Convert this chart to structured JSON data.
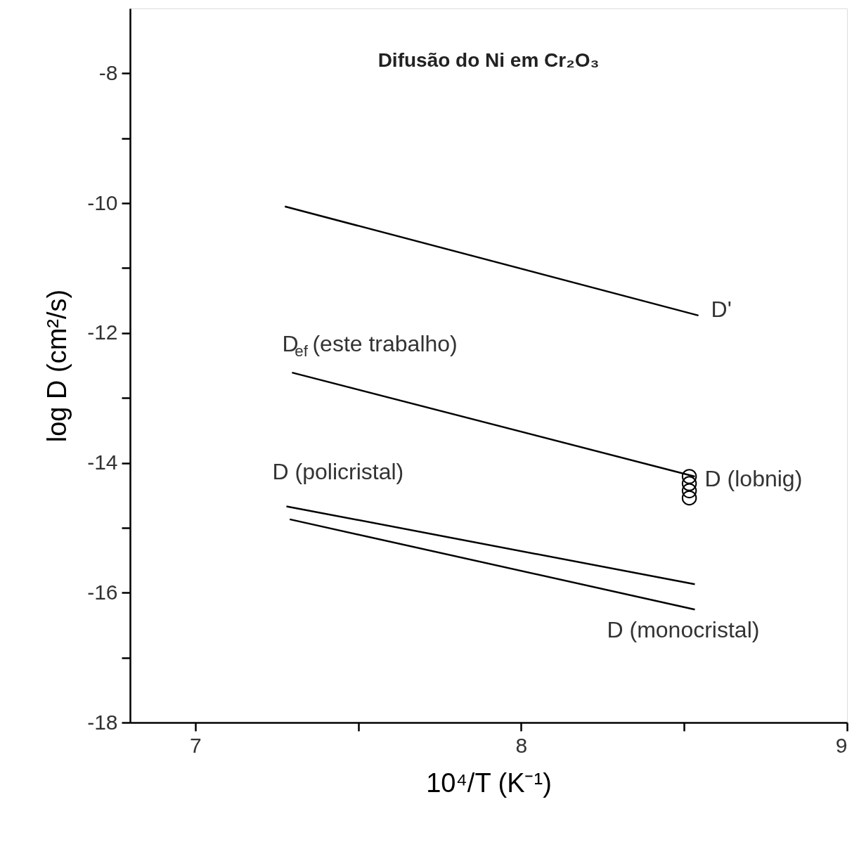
{
  "chart_data": {
    "type": "line",
    "title": "Difusão do Ni em Cr₂O₃",
    "xlabel": "10⁴/T (K⁻¹)",
    "ylabel": "log D (cm²/s)",
    "xlim": [
      6.8,
      9
    ],
    "ylim": [
      -18,
      -7
    ],
    "xticks": [
      7,
      {
        "value": 7.5,
        "label": null
      },
      8,
      {
        "value": 8.5,
        "label": null
      },
      9
    ],
    "yticks": [
      -8,
      {
        "value": -9,
        "label": null
      },
      -10,
      {
        "value": -11,
        "label": null
      },
      -12,
      {
        "value": -13,
        "label": null
      },
      -14,
      {
        "value": -15,
        "label": null
      },
      -16,
      {
        "value": -17,
        "label": null
      },
      -18
    ],
    "grid": false,
    "series": [
      {
        "name": "D'",
        "color": "#000000",
        "x": [
          7.275,
          8.544
        ],
        "values": [
          -10.05,
          -11.73
        ]
      },
      {
        "name": "D$_{ef}$ (este trabalho)",
        "color": "#000000",
        "x": [
          7.297,
          8.533
        ],
        "values": [
          -12.61,
          -14.21
        ]
      },
      {
        "name": "D (policristal)",
        "color": "#000000",
        "x": [
          7.28,
          8.533
        ],
        "values": [
          -14.67,
          -15.87
        ]
      },
      {
        "name": "D (monocristal)",
        "color": "#000000",
        "x": [
          7.29,
          8.533
        ],
        "values": [
          -14.87,
          -16.26
        ]
      },
      {
        "name": "D (lobnig)",
        "type": "scatter",
        "marker": "circle",
        "color": "#000000",
        "x": [
          8.516,
          8.516,
          8.516,
          8.516
        ],
        "values": [
          -14.21,
          -14.32,
          -14.43,
          -14.54
        ]
      }
    ]
  }
}
